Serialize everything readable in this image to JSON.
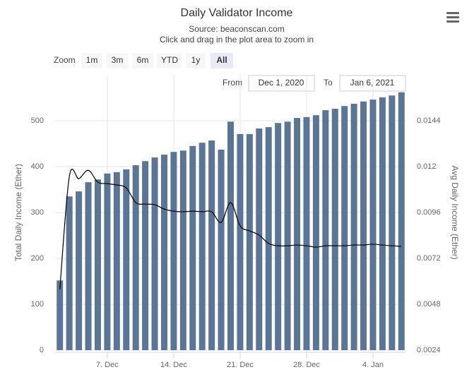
{
  "chart_data": {
    "type": "bar-line",
    "title": "Daily Validator Income",
    "subtitle": "Source: beaconscan.com",
    "subtitle2": "Click and drag in the plot area to zoom in",
    "range_selector": {
      "label": "Zoom",
      "buttons": [
        "1m",
        "3m",
        "6m",
        "YTD",
        "1y",
        "All"
      ],
      "selected": 5,
      "from_label": "From",
      "from": "Dec 1, 2020",
      "to_label": "To",
      "to": "Jan 6, 2021"
    },
    "y_label": "Total Daily Income (Ether)",
    "y2_label": "Avg Daily Income (Ether)",
    "x": [
      "2020-12-02",
      "2020-12-03",
      "2020-12-04",
      "2020-12-05",
      "2020-12-06",
      "2020-12-07",
      "2020-12-08",
      "2020-12-09",
      "2020-12-10",
      "2020-12-11",
      "2020-12-12",
      "2020-12-13",
      "2020-12-14",
      "2020-12-15",
      "2020-12-16",
      "2020-12-17",
      "2020-12-18",
      "2020-12-19",
      "2020-12-20",
      "2020-12-21",
      "2020-12-22",
      "2020-12-23",
      "2020-12-24",
      "2020-12-25",
      "2020-12-26",
      "2020-12-27",
      "2020-12-28",
      "2020-12-29",
      "2020-12-30",
      "2020-12-31",
      "2021-01-01",
      "2021-01-02",
      "2021-01-03",
      "2021-01-04",
      "2021-01-05",
      "2021-01-06",
      "2021-01-07"
    ],
    "xlim": [
      "2020-12-02",
      "2021-01-07"
    ],
    "xticks": [
      {
        "value": "2020-12-07",
        "label": "7. Dec"
      },
      {
        "value": "2020-12-14",
        "label": "14. Dec"
      },
      {
        "value": "2020-12-21",
        "label": "21. Dec"
      },
      {
        "value": "2020-12-28",
        "label": "28. Dec"
      },
      {
        "value": "2021-01-04",
        "label": "4. Jan"
      }
    ],
    "ylim": [
      0,
      600
    ],
    "yticks": [
      0,
      100,
      200,
      300,
      400,
      500
    ],
    "y2lim": [
      0.0024,
      0.0168
    ],
    "y2ticks": [
      0.0024,
      0.0048,
      0.0072,
      0.0096,
      0.012,
      0.0144
    ],
    "grid": true,
    "series": [
      {
        "name": "Total Daily Income",
        "type": "bar",
        "color": "#5b7597",
        "values": [
          152,
          335,
          346,
          366,
          372,
          385,
          388,
          394,
          403,
          412,
          420,
          426,
          432,
          435,
          445,
          452,
          457,
          437,
          498,
          471,
          471,
          483,
          486,
          495,
          498,
          506,
          508,
          512,
          523,
          526,
          532,
          537,
          542,
          546,
          551,
          555,
          562
        ]
      },
      {
        "name": "Avg Daily Income",
        "type": "line",
        "axis": "y2",
        "color": "#000000",
        "values": [
          0.00558,
          0.01148,
          0.01137,
          0.01181,
          0.01119,
          0.01111,
          0.01104,
          0.01089,
          0.01012,
          0.01004,
          0.01001,
          0.00978,
          0.00967,
          0.00964,
          0.00967,
          0.00964,
          0.00964,
          0.00908,
          0.01012,
          0.0089,
          0.00864,
          0.00842,
          0.00798,
          0.00786,
          0.00786,
          0.0079,
          0.00786,
          0.00779,
          0.00786,
          0.00786,
          0.00786,
          0.0079,
          0.0079,
          0.00794,
          0.0079,
          0.00786,
          0.00783
        ]
      }
    ]
  }
}
